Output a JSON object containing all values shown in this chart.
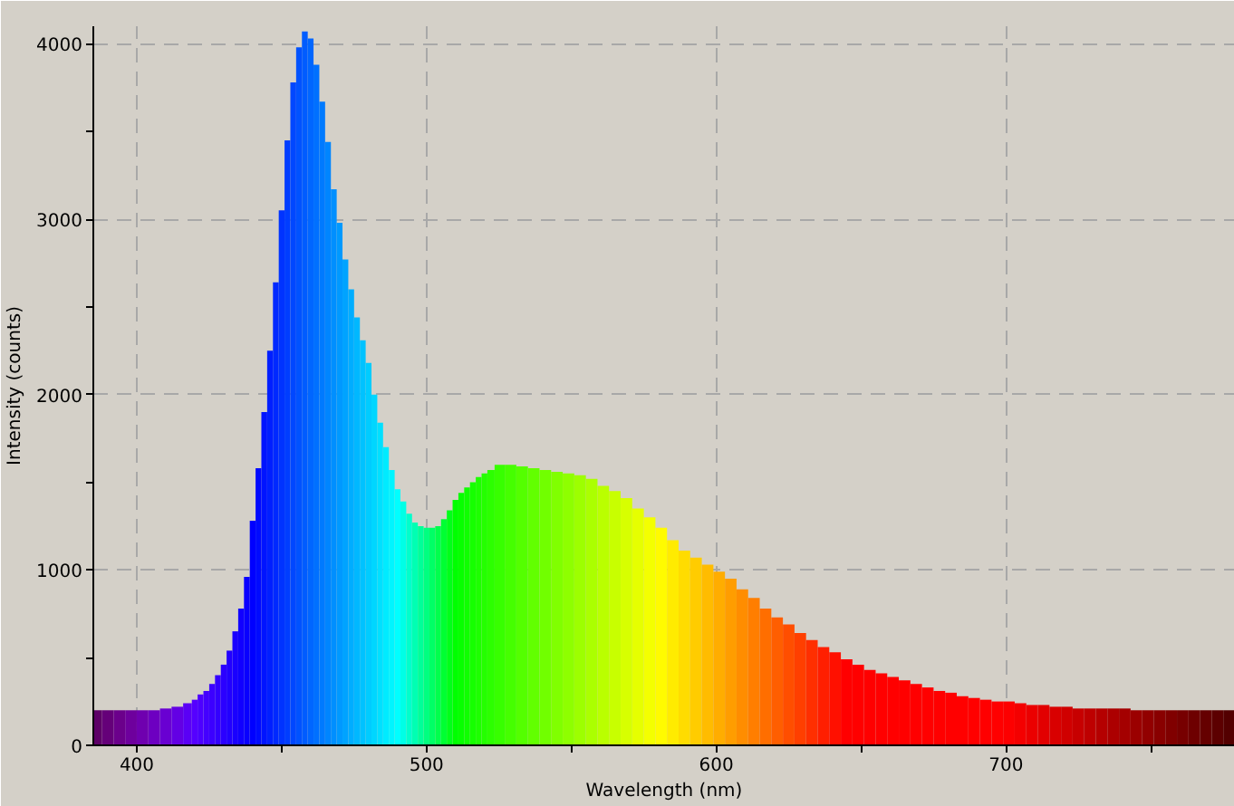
{
  "chart_data": {
    "type": "bar",
    "xlabel": "Wavelength (nm)",
    "ylabel": "Intensity (counts)",
    "xlim": [
      385,
      779
    ],
    "ylim": [
      0,
      4100
    ],
    "xticks": [
      400,
      {
        "value": 450,
        "label": null
      },
      500,
      {
        "value": 550,
        "label": null
      },
      600,
      {
        "value": 650,
        "label": null
      },
      700,
      {
        "value": 750,
        "label": null
      }
    ],
    "yticks": [
      0,
      {
        "value": 500,
        "label": null
      },
      1000,
      {
        "value": 1500,
        "label": null
      },
      2000,
      {
        "value": 2500,
        "label": null
      },
      3000,
      {
        "value": 3500,
        "label": null
      },
      4000
    ],
    "grid": true,
    "x": [
      386,
      390,
      394,
      398,
      402,
      406,
      410,
      414,
      418,
      420,
      422,
      424,
      426,
      428,
      430,
      432,
      434,
      436,
      438,
      440,
      442,
      444,
      446,
      448,
      450,
      452,
      454,
      456,
      458,
      460,
      462,
      464,
      466,
      468,
      470,
      472,
      474,
      476,
      478,
      480,
      482,
      484,
      486,
      488,
      490,
      492,
      494,
      496,
      498,
      500,
      502,
      504,
      506,
      508,
      510,
      512,
      514,
      516,
      518,
      520,
      522,
      525,
      529,
      533,
      537,
      541,
      545,
      549,
      553,
      557,
      561,
      565,
      569,
      573,
      577,
      581,
      585,
      589,
      593,
      597,
      601,
      605,
      609,
      613,
      617,
      621,
      625,
      629,
      633,
      637,
      641,
      645,
      649,
      653,
      657,
      661,
      665,
      669,
      673,
      677,
      681,
      685,
      689,
      693,
      697,
      701,
      705,
      709,
      713,
      717,
      721,
      725,
      729,
      733,
      737,
      741,
      745,
      749,
      753,
      757,
      761,
      765,
      769,
      773,
      777
    ],
    "values": [
      200,
      200,
      200,
      200,
      200,
      200,
      210,
      220,
      240,
      260,
      290,
      310,
      350,
      400,
      460,
      540,
      650,
      780,
      960,
      1280,
      1580,
      1900,
      2250,
      2640,
      3050,
      3450,
      3780,
      3980,
      4070,
      4030,
      3880,
      3670,
      3440,
      3170,
      2980,
      2770,
      2600,
      2440,
      2310,
      2180,
      2000,
      1840,
      1700,
      1570,
      1460,
      1390,
      1320,
      1270,
      1250,
      1240,
      1240,
      1250,
      1290,
      1340,
      1400,
      1440,
      1470,
      1500,
      1530,
      1550,
      1570,
      1600,
      1600,
      1590,
      1580,
      1570,
      1560,
      1550,
      1540,
      1520,
      1480,
      1450,
      1410,
      1350,
      1300,
      1240,
      1170,
      1110,
      1070,
      1030,
      990,
      950,
      890,
      840,
      780,
      730,
      690,
      640,
      600,
      560,
      530,
      490,
      460,
      430,
      410,
      390,
      370,
      350,
      330,
      310,
      300,
      280,
      270,
      260,
      250,
      250,
      240,
      230,
      230,
      220,
      220,
      210,
      210,
      210,
      210,
      210,
      200,
      200,
      200,
      200,
      200,
      200,
      200,
      200,
      200
    ],
    "colors": [
      "#5d0067",
      "#650079",
      "#6b008b",
      "#6e009d",
      "#6f00af",
      "#6d00c1",
      "#6900d2",
      "#6300e4",
      "#5a00f6",
      "#5500ff",
      "#4d00ff",
      "#4400ff",
      "#3c00ff",
      "#3300ff",
      "#2b00ff",
      "#2200ff",
      "#1a00ff",
      "#1100ff",
      "#0900ff",
      "#0000ff",
      "#000aff",
      "#0014ff",
      "#001fff",
      "#0029ff",
      "#0033ff",
      "#003dff",
      "#0047ff",
      "#0052ff",
      "#005cff",
      "#0066ff",
      "#0070ff",
      "#007aff",
      "#0085ff",
      "#008fff",
      "#0099ff",
      "#00a3ff",
      "#00adff",
      "#00b8ff",
      "#00c2ff",
      "#00ccff",
      "#00d6ff",
      "#00e0ff",
      "#00ebff",
      "#00f5ff",
      "#00ffff",
      "#00ffe6",
      "#00ffcc",
      "#00ffb3",
      "#00ff99",
      "#00ff80",
      "#00ff66",
      "#00ff4d",
      "#00ff33",
      "#00ff1a",
      "#00ff00",
      "#07ff00",
      "#0fff00",
      "#16ff00",
      "#1dff00",
      "#24ff00",
      "#2cff00",
      "#37ff00",
      "#45ff00",
      "#54ff00",
      "#62ff00",
      "#71ff00",
      "#80ff00",
      "#8eff00",
      "#9dff00",
      "#abff00",
      "#baff00",
      "#c8ff00",
      "#d7ff00",
      "#e6ff00",
      "#f4ff00",
      "#fffb00",
      "#ffeb00",
      "#ffdc00",
      "#ffcc00",
      "#ffbc00",
      "#ffad00",
      "#ff9d00",
      "#ff8d00",
      "#ff7e00",
      "#ff6e00",
      "#ff5e00",
      "#ff4e00",
      "#ff3f00",
      "#ff2f00",
      "#ff1f00",
      "#ff1000",
      "#ff0000",
      "#ff0000",
      "#ff0000",
      "#ff0000",
      "#ff0000",
      "#ff0000",
      "#ff0000",
      "#ff0000",
      "#ff0000",
      "#ff0000",
      "#ff0000",
      "#ff0000",
      "#ff0000",
      "#ff0000",
      "#fd0000",
      "#f40000",
      "#eb0000",
      "#e20000",
      "#d90000",
      "#d00000",
      "#c70000",
      "#be0000",
      "#b50000",
      "#ac0000",
      "#a40000",
      "#9b0000",
      "#920000",
      "#890000",
      "#800000",
      "#770000",
      "#6e0000",
      "#650000",
      "#5c0000",
      "#530000"
    ]
  }
}
